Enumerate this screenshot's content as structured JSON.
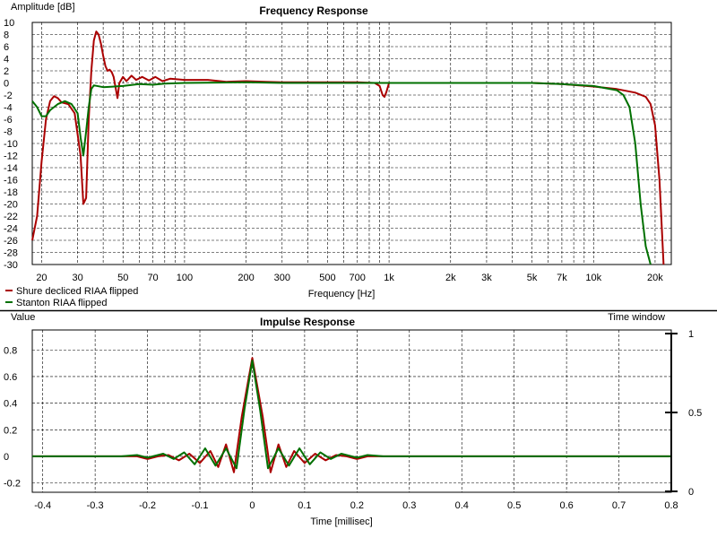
{
  "chart_data": [
    {
      "type": "line",
      "title": "Frequency Response",
      "xlabel": "Frequency [Hz]",
      "ylabel": "Amplitude [dB]",
      "xscale": "log",
      "xlim": [
        18,
        24000
      ],
      "ylim": [
        -30,
        10
      ],
      "grid": true,
      "legend": "bottom-left",
      "x_ticks": [
        20,
        30,
        50,
        70,
        100,
        200,
        300,
        500,
        700,
        1000,
        2000,
        3000,
        5000,
        7000,
        10000,
        20000
      ],
      "x_tick_labels": [
        "20",
        "30",
        "50",
        "70",
        "100",
        "200",
        "300",
        "500",
        "700",
        "1k",
        "2k",
        "3k",
        "5k",
        "7k",
        "10k",
        "20k"
      ],
      "y_ticks": [
        10,
        8,
        6,
        4,
        2,
        0,
        -2,
        -4,
        -6,
        -8,
        -10,
        -12,
        -14,
        -16,
        -18,
        -20,
        -22,
        -24,
        -26,
        -28,
        -30
      ],
      "y_tick_labels": [
        "10",
        "8",
        "6",
        "4",
        "2",
        "0",
        "-2",
        "-4",
        "-6",
        "-8",
        "-10",
        "-12",
        "-14",
        "-16",
        "-18",
        "-20",
        "-22",
        "-24",
        "-26",
        "-28",
        "-30"
      ],
      "series": [
        {
          "name": "Shure decliced RIAA flipped",
          "color": "#aa0000",
          "points": [
            [
              18,
              -26
            ],
            [
              19,
              -22
            ],
            [
              20,
              -13
            ],
            [
              21,
              -6
            ],
            [
              22,
              -3
            ],
            [
              23,
              -2.2
            ],
            [
              24,
              -2.5
            ],
            [
              25,
              -3.2
            ],
            [
              27,
              -3.5
            ],
            [
              29,
              -5
            ],
            [
              31,
              -12
            ],
            [
              32,
              -20
            ],
            [
              33,
              -19
            ],
            [
              34,
              -6
            ],
            [
              35,
              2
            ],
            [
              36,
              7
            ],
            [
              37,
              8.5
            ],
            [
              38,
              8
            ],
            [
              39,
              6.5
            ],
            [
              40,
              4.5
            ],
            [
              41,
              2.8
            ],
            [
              42,
              2
            ],
            [
              43,
              2.2
            ],
            [
              44,
              1.8
            ],
            [
              45,
              1
            ],
            [
              46,
              -0.8
            ],
            [
              47,
              -2.5
            ],
            [
              48,
              0
            ],
            [
              50,
              1
            ],
            [
              52,
              0.3
            ],
            [
              55,
              1.2
            ],
            [
              58,
              0.5
            ],
            [
              62,
              1
            ],
            [
              67,
              0.4
            ],
            [
              72,
              1
            ],
            [
              78,
              0.3
            ],
            [
              85,
              0.7
            ],
            [
              100,
              0.5
            ],
            [
              130,
              0.5
            ],
            [
              160,
              0.2
            ],
            [
              200,
              0.3
            ],
            [
              250,
              0.2
            ],
            [
              300,
              0.1
            ],
            [
              500,
              0.1
            ],
            [
              700,
              0.1
            ],
            [
              850,
              0
            ],
            [
              900,
              -0.5
            ],
            [
              930,
              -2
            ],
            [
              950,
              -2.3
            ],
            [
              970,
              -1.5
            ],
            [
              1000,
              0
            ],
            [
              1500,
              0
            ],
            [
              3000,
              0
            ],
            [
              5000,
              0
            ],
            [
              7000,
              -0.2
            ],
            [
              10000,
              -0.6
            ],
            [
              13000,
              -1
            ],
            [
              16000,
              -1.6
            ],
            [
              18000,
              -2.3
            ],
            [
              19000,
              -3.5
            ],
            [
              20000,
              -7
            ],
            [
              21000,
              -16
            ],
            [
              22000,
              -30
            ]
          ]
        },
        {
          "name": "Stanton RIAA flipped",
          "color": "#007000",
          "points": [
            [
              18,
              -3
            ],
            [
              19,
              -4
            ],
            [
              20,
              -5.5
            ],
            [
              21,
              -5.5
            ],
            [
              22,
              -4.5
            ],
            [
              24,
              -3.5
            ],
            [
              26,
              -3
            ],
            [
              28,
              -3.5
            ],
            [
              30,
              -5
            ],
            [
              31,
              -9
            ],
            [
              32,
              -12
            ],
            [
              33,
              -8
            ],
            [
              34,
              -4
            ],
            [
              35,
              -1
            ],
            [
              36,
              -0.4
            ],
            [
              40,
              -0.7
            ],
            [
              50,
              -0.5
            ],
            [
              60,
              -0.2
            ],
            [
              70,
              -0.3
            ],
            [
              80,
              -0.1
            ],
            [
              100,
              0
            ],
            [
              200,
              0.1
            ],
            [
              300,
              0
            ],
            [
              1000,
              0
            ],
            [
              3000,
              0
            ],
            [
              5000,
              0
            ],
            [
              7000,
              -0.2
            ],
            [
              10000,
              -0.5
            ],
            [
              13000,
              -1.2
            ],
            [
              14000,
              -2
            ],
            [
              15000,
              -4
            ],
            [
              16000,
              -10
            ],
            [
              17000,
              -20
            ],
            [
              18000,
              -27
            ],
            [
              19000,
              -30
            ]
          ]
        }
      ]
    },
    {
      "type": "line",
      "title": "Impulse Response",
      "xlabel": "Time [millisec]",
      "ylabel": "Value",
      "secondary_ylabel": "Time window",
      "xlim": [
        -0.42,
        0.8
      ],
      "ylim": [
        -0.27,
        0.95
      ],
      "secondary_ylim": [
        0,
        1
      ],
      "grid": true,
      "x_ticks": [
        -0.4,
        -0.3,
        -0.2,
        -0.1,
        0,
        0.1,
        0.2,
        0.3,
        0.4,
        0.5,
        0.6,
        0.7,
        0.8
      ],
      "x_tick_labels": [
        "-0.4",
        "-0.3",
        "-0.2",
        "-0.1",
        "0",
        "0.1",
        "0.2",
        "0.3",
        "0.4",
        "0.5",
        "0.6",
        "0.7",
        "0.8"
      ],
      "y_ticks": [
        0.8,
        0.6,
        0.4,
        0.2,
        0,
        -0.2
      ],
      "y_tick_labels": [
        "0.8",
        "0.6",
        "0.4",
        "0.2",
        "0",
        "-0.2"
      ],
      "secondary_ticks": [
        1,
        0.5,
        0
      ],
      "secondary_tick_labels": [
        "1",
        "0.5",
        "0"
      ],
      "series": [
        {
          "name": "Shure decliced RIAA flipped",
          "color": "#aa0000",
          "points": [
            [
              -0.42,
              0
            ],
            [
              -0.3,
              0
            ],
            [
              -0.22,
              0
            ],
            [
              -0.2,
              -0.02
            ],
            [
              -0.18,
              0
            ],
            [
              -0.16,
              0.01
            ],
            [
              -0.14,
              -0.03
            ],
            [
              -0.12,
              0.02
            ],
            [
              -0.1,
              -0.05
            ],
            [
              -0.08,
              0.04
            ],
            [
              -0.065,
              -0.08
            ],
            [
              -0.05,
              0.09
            ],
            [
              -0.035,
              -0.12
            ],
            [
              -0.02,
              0.3
            ],
            [
              0,
              0.74
            ],
            [
              0.02,
              0.3
            ],
            [
              0.035,
              -0.12
            ],
            [
              0.05,
              0.09
            ],
            [
              0.065,
              -0.08
            ],
            [
              0.08,
              0.04
            ],
            [
              0.1,
              -0.05
            ],
            [
              0.12,
              0.02
            ],
            [
              0.14,
              -0.03
            ],
            [
              0.16,
              0.01
            ],
            [
              0.18,
              0
            ],
            [
              0.2,
              -0.02
            ],
            [
              0.22,
              0
            ],
            [
              0.3,
              0
            ],
            [
              0.8,
              0
            ]
          ]
        },
        {
          "name": "Stanton RIAA flipped",
          "color": "#007000",
          "points": [
            [
              -0.42,
              0
            ],
            [
              -0.25,
              0
            ],
            [
              -0.22,
              0.01
            ],
            [
              -0.2,
              -0.01
            ],
            [
              -0.17,
              0.02
            ],
            [
              -0.15,
              -0.02
            ],
            [
              -0.13,
              0.03
            ],
            [
              -0.11,
              -0.06
            ],
            [
              -0.09,
              0.06
            ],
            [
              -0.07,
              -0.07
            ],
            [
              -0.05,
              0.06
            ],
            [
              -0.03,
              -0.09
            ],
            [
              -0.015,
              0.35
            ],
            [
              0,
              0.72
            ],
            [
              0.015,
              0.35
            ],
            [
              0.03,
              -0.09
            ],
            [
              0.05,
              0.06
            ],
            [
              0.07,
              -0.07
            ],
            [
              0.09,
              0.06
            ],
            [
              0.11,
              -0.06
            ],
            [
              0.13,
              0.03
            ],
            [
              0.15,
              -0.02
            ],
            [
              0.17,
              0.02
            ],
            [
              0.2,
              -0.01
            ],
            [
              0.22,
              0.01
            ],
            [
              0.25,
              0
            ],
            [
              0.8,
              0
            ]
          ]
        }
      ]
    }
  ]
}
